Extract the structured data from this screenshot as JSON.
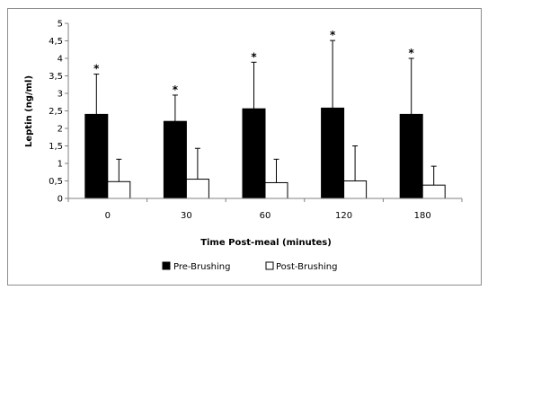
{
  "chart_data": {
    "type": "bar",
    "title": "",
    "xlabel": "Time Post-meal (minutes)",
    "ylabel": "Leptin (ng/ml)",
    "ylim": [
      0,
      5
    ],
    "yticks": [
      "0",
      "0,5",
      "1",
      "1,5",
      "2",
      "2,5",
      "3",
      "3,5",
      "4",
      "4,5",
      "5"
    ],
    "categories": [
      "0",
      "30",
      "60",
      "120",
      "180"
    ],
    "series": [
      {
        "name": "Pre-Brushing",
        "color": "#000000",
        "values": [
          2.4,
          2.2,
          2.56,
          2.58,
          2.4
        ],
        "error": [
          1.15,
          0.75,
          1.33,
          1.93,
          1.6
        ],
        "significance": [
          "*",
          "*",
          "*",
          "*",
          "*"
        ]
      },
      {
        "name": "Post-Brushing",
        "color": "#ffffff",
        "values": [
          0.48,
          0.55,
          0.45,
          0.5,
          0.38
        ],
        "error": [
          0.64,
          0.88,
          0.67,
          1.0,
          0.54
        ]
      }
    ],
    "grid": false,
    "legend": "bottom"
  }
}
